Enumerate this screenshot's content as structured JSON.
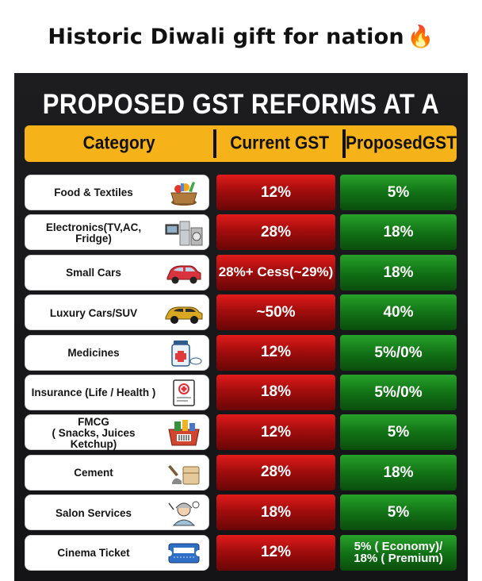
{
  "caption": "Historic Diwali gift for nation",
  "caption_emoji": "🔥",
  "title": "PROPOSED GST REFORMS AT A GLANCE",
  "headers": {
    "category": "Category",
    "current": "Current GST",
    "proposed": "ProposedGST"
  },
  "colors": {
    "header_bar": "#f6b219",
    "current_cell": "#b31010",
    "proposed_cell": "#157a18",
    "board": "#1a1a1c"
  },
  "rows": [
    {
      "category": "Food & Textiles",
      "icon": "grocery-basket-icon",
      "current": "12%",
      "proposed": "5%"
    },
    {
      "category": "Electronics(TV,AC, Fridge)",
      "icon": "appliances-icon",
      "current": "28%",
      "proposed": "18%"
    },
    {
      "category": "Small Cars",
      "icon": "small-car-icon",
      "current": "28%+ Cess(~29%)",
      "proposed": "18%"
    },
    {
      "category": "Luxury Cars/SUV",
      "icon": "luxury-car-icon",
      "current": "~50%",
      "proposed": "40%"
    },
    {
      "category": "Medicines",
      "icon": "medicine-icon",
      "current": "12%",
      "proposed": "5%/0%"
    },
    {
      "category": "Insurance (Life / Health )",
      "icon": "insurance-document-icon",
      "current": "18%",
      "proposed": "5%/0%"
    },
    {
      "category": "FMCG\n( Snacks, Juices Ketchup)",
      "icon": "shopping-basket-icon",
      "current": "12%",
      "proposed": "5%"
    },
    {
      "category": "Cement",
      "icon": "cement-bag-icon",
      "current": "28%",
      "proposed": "18%"
    },
    {
      "category": "Salon Services",
      "icon": "salon-icon",
      "current": "18%",
      "proposed": "5%"
    },
    {
      "category": "Cinema Ticket",
      "icon": "ticket-icon",
      "current": "12%",
      "proposed": "5% ( Economy)/\n18% ( Premium)"
    }
  ]
}
